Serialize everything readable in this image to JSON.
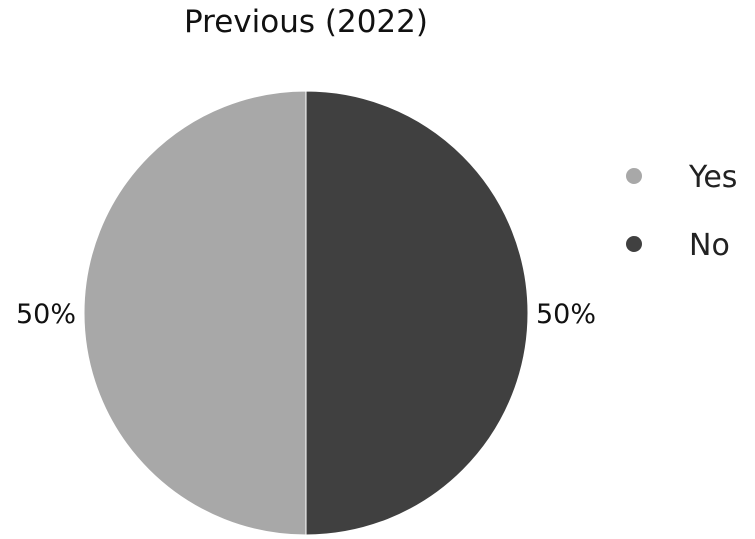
{
  "chart_data": {
    "type": "pie",
    "title": "Previous (2022)",
    "categories": [
      "Yes",
      "No"
    ],
    "values": [
      50,
      50
    ],
    "data_labels": [
      "50%",
      "50%"
    ],
    "colors": [
      "#a8a8a8",
      "#404040"
    ],
    "legend": {
      "position": "right",
      "entries": [
        "Yes",
        "No"
      ]
    }
  }
}
